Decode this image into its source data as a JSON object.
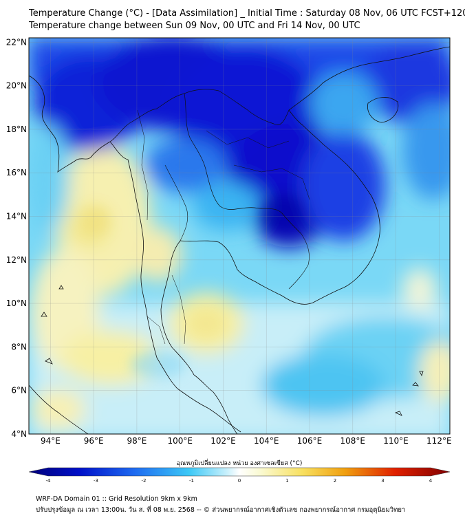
{
  "header": {
    "title": "Temperature Change (°C) - [Data Assimilation] _ Initial Time : Saturday 08 Nov, 06 UTC FCST+120",
    "subtitle": "Temperature change between Sun 09 Nov, 00 UTC and Fri 14 Nov, 00 UTC"
  },
  "map": {
    "lat_labels": [
      "22°N",
      "20°N",
      "18°N",
      "16°N",
      "14°N",
      "12°N",
      "10°N",
      "8°N",
      "6°N",
      "4°N"
    ],
    "lon_labels": [
      "94°E",
      "96°E",
      "98°E",
      "100°E",
      "102°E",
      "104°E",
      "106°E",
      "108°E",
      "110°E",
      "112°E"
    ],
    "extent": {
      "lon_min": 93,
      "lon_max": 112.5,
      "lat_min": 4,
      "lat_max": 22.2
    },
    "colors": {
      "cold_dark": "#0a10d8",
      "cold": "#1e5af0",
      "cool": "#3cc0f4",
      "cool_light": "#a0e6fa",
      "neutral": "#e8f8fc",
      "warm_light": "#fafad2",
      "warm": "#f7f0a4"
    }
  },
  "colorbar": {
    "label": "อุณหภูมิเปลี่ยนแปลง หน่วย องศาเซลเซียส (°C)",
    "ticks": [
      "-4",
      "-3",
      "-2",
      "-1",
      "0",
      "1",
      "2",
      "3",
      "4"
    ],
    "colors": [
      "#00007a",
      "#0018d8",
      "#1e78f0",
      "#3cc8f6",
      "#e8f8ff",
      "#fafad2",
      "#f8d020",
      "#f08010",
      "#e00000",
      "#800000"
    ]
  },
  "footer": {
    "line1": "WRF-DA Domain 01 :: Grid Resolution 9km x 9km",
    "line2": "ปรับปรุงข้อมูล ณ เวลา 13:00น. วัน ส. ที่ 08 พ.ย. 2568 -- © ส่วนพยากรณ์อากาศเชิงตัวเลข กองพยากรณ์อากาศ กรมอุตุนิยมวิทยา"
  }
}
